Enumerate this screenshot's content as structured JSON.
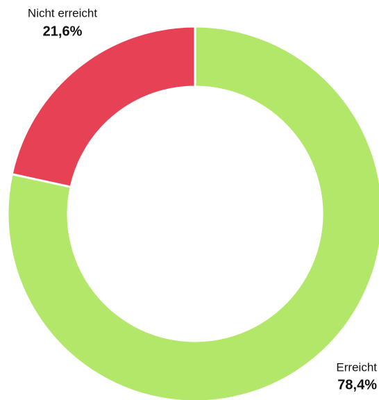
{
  "chart_data": {
    "type": "donut",
    "categories": [
      "Erreicht",
      "Nicht erreicht"
    ],
    "values": [
      78.4,
      21.6
    ],
    "value_labels": [
      "78,4%",
      "21,6%"
    ],
    "colors": [
      "#b3e76a",
      "#e64154"
    ]
  }
}
